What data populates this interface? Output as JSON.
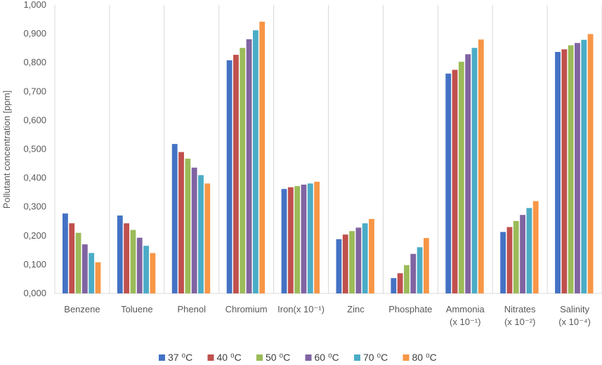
{
  "chart_data": {
    "type": "bar",
    "ylabel": "Pollutant concentration [ppm]",
    "ylim": [
      0,
      1.0
    ],
    "y_ticks": [
      "0,000",
      "0,100",
      "0,200",
      "0,300",
      "0,400",
      "0,500",
      "0,600",
      "0,700",
      "0,800",
      "0,900",
      "1,000"
    ],
    "grid": "vertical category separators",
    "legend_position": "bottom",
    "categories": [
      {
        "line1": "Benzene",
        "line2": ""
      },
      {
        "line1": "Toluene",
        "line2": ""
      },
      {
        "line1": "Phenol",
        "line2": ""
      },
      {
        "line1": "Chromium",
        "line2": ""
      },
      {
        "line1": "Iron(x 10⁻¹)",
        "line2": ""
      },
      {
        "line1": "Zinc",
        "line2": ""
      },
      {
        "line1": "Phosphate",
        "line2": ""
      },
      {
        "line1": "Ammonia",
        "line2": "(x 10⁻¹)"
      },
      {
        "line1": "Nitrates",
        "line2": "(x 10⁻²)"
      },
      {
        "line1": "Salinity",
        "line2": "(x 10⁻⁴)"
      }
    ],
    "series": [
      {
        "name": "37 ⁰C",
        "color": "#4472C4",
        "values": [
          0.277,
          0.27,
          0.518,
          0.808,
          0.362,
          0.188,
          0.053,
          0.762,
          0.213,
          0.837
        ]
      },
      {
        "name": "40 ⁰C",
        "color": "#C0504D",
        "values": [
          0.243,
          0.243,
          0.49,
          0.827,
          0.368,
          0.204,
          0.07,
          0.775,
          0.23,
          0.846
        ]
      },
      {
        "name": "50 ⁰C",
        "color": "#9BBB59",
        "values": [
          0.21,
          0.22,
          0.467,
          0.851,
          0.372,
          0.216,
          0.098,
          0.803,
          0.251,
          0.86
        ]
      },
      {
        "name": "60 ⁰C",
        "color": "#8064A2",
        "values": [
          0.17,
          0.193,
          0.436,
          0.881,
          0.377,
          0.228,
          0.137,
          0.829,
          0.272,
          0.868
        ]
      },
      {
        "name": "70 ⁰C",
        "color": "#4BACC6",
        "values": [
          0.14,
          0.165,
          0.41,
          0.912,
          0.381,
          0.243,
          0.16,
          0.851,
          0.296,
          0.879
        ]
      },
      {
        "name": "80 ⁰C",
        "color": "#F79646",
        "values": [
          0.108,
          0.14,
          0.381,
          0.942,
          0.387,
          0.258,
          0.192,
          0.88,
          0.32,
          0.899
        ]
      }
    ]
  }
}
